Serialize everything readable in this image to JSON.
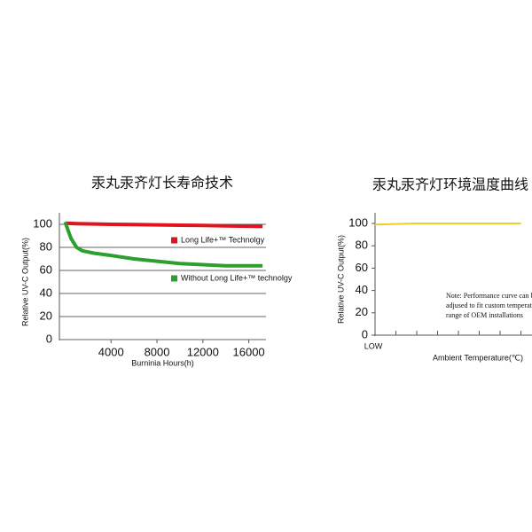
{
  "chart_data": [
    {
      "type": "line",
      "title": "汞丸汞齐灯长寿命技术",
      "x_label": "Burninia Hours(h)",
      "y_label": "Relative UV-C Output(%)",
      "x": [
        0,
        500,
        1000,
        1500,
        2500,
        4000,
        6000,
        8000,
        10000,
        12000,
        14000,
        16000,
        17200
      ],
      "series": [
        {
          "name": "Long Life+™ Technolgy",
          "color": "#e0141e",
          "values": [
            101,
            100.8,
            100.6,
            100.5,
            100.3,
            100,
            99.8,
            99.5,
            99.2,
            99,
            98.7,
            98.4,
            98.2
          ]
        },
        {
          "name": "Without Long Life+™ technolgy",
          "color": "#2ca02c",
          "values": [
            102,
            88,
            80,
            77,
            75,
            73,
            70,
            68,
            66,
            65,
            64,
            64,
            64
          ]
        }
      ],
      "xlim": [
        -500,
        17500
      ],
      "ylim": [
        0,
        100
      ],
      "xticks": [
        4000,
        8000,
        12000,
        16000
      ],
      "yticks": [
        0,
        20,
        40,
        60,
        80,
        100
      ],
      "grid": true
    },
    {
      "type": "line",
      "title": "汞丸汞齐灯环境温度曲线",
      "x_label": "Ambient Temperature(℃)",
      "y_label": "Relative UV-C Output(%)",
      "categories": [
        "LOW",
        null,
        null,
        null,
        null,
        null,
        null,
        null
      ],
      "series": [
        {
          "color": "#f2cc1f",
          "values": [
            99,
            99.5,
            100,
            100,
            100,
            100,
            100,
            100
          ]
        }
      ],
      "ylim": [
        0,
        100
      ],
      "yticks": [
        0,
        20,
        40,
        60,
        80,
        100
      ],
      "note": [
        "Note: Performance curve can be",
        "adjused to fit custom temperature",
        "range of OEM installations"
      ]
    }
  ]
}
